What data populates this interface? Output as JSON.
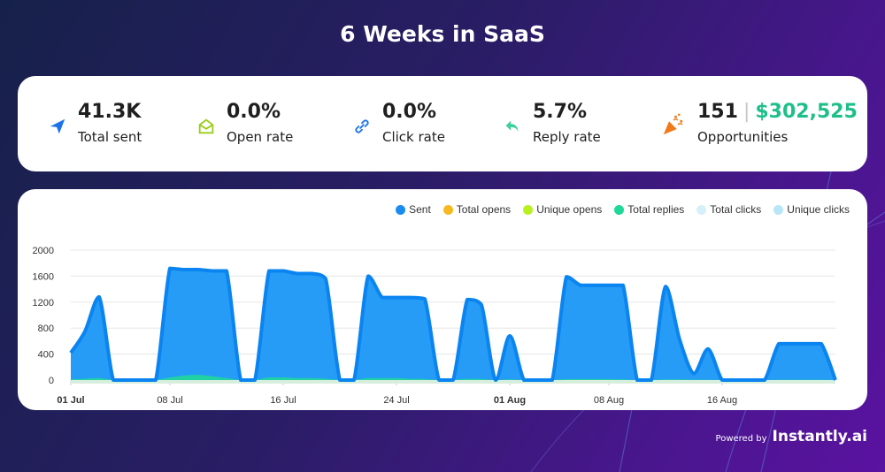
{
  "title": "6 Weeks in SaaS",
  "stats": [
    {
      "value": "41.3K",
      "label": "Total sent",
      "icon": "paper-plane-icon",
      "color": "#1a73e8"
    },
    {
      "value": "0.0%",
      "label": "Open rate",
      "icon": "open-envelope-icon",
      "color": "#9acd1a"
    },
    {
      "value": "0.0%",
      "label": "Click rate",
      "icon": "link-icon",
      "color": "#1a73e8"
    },
    {
      "value": "5.7%",
      "label": "Reply rate",
      "icon": "reply-arrow-icon",
      "color": "#3ecf9a"
    },
    {
      "value": "151",
      "money": "$302,525",
      "separator": "|",
      "label": "Opportunities",
      "icon": "party-popper-icon",
      "color": "#f07a1a"
    }
  ],
  "footer": {
    "powered_by": "Powered by",
    "brand": "Instantly.ai"
  },
  "chart_data": {
    "type": "area",
    "title": "",
    "xlabel": "",
    "ylabel": "",
    "ylim": [
      0,
      2000
    ],
    "yticks": [
      "0",
      "400",
      "800",
      "1200",
      "1600",
      "2000"
    ],
    "ytick_values": [
      0,
      400,
      800,
      1200,
      1600,
      2000
    ],
    "xticks": [
      {
        "label": "01 Jul",
        "day": 0,
        "bold": true
      },
      {
        "label": "08 Jul",
        "day": 7,
        "bold": false
      },
      {
        "label": "16 Jul",
        "day": 15,
        "bold": false
      },
      {
        "label": "24 Jul",
        "day": 23,
        "bold": false
      },
      {
        "label": "01 Aug",
        "day": 31,
        "bold": true
      },
      {
        "label": "08 Aug",
        "day": 38,
        "bold": false
      },
      {
        "label": "16 Aug",
        "day": 46,
        "bold": false
      }
    ],
    "grid": true,
    "legend_position": "top-right",
    "legend": [
      {
        "name": "Sent",
        "color": "#1a8cf0"
      },
      {
        "name": "Total opens",
        "color": "#f8b920"
      },
      {
        "name": "Unique opens",
        "color": "#b8f020"
      },
      {
        "name": "Total replies",
        "color": "#20d89a"
      },
      {
        "name": "Total clicks",
        "color": "#d6f0fa"
      },
      {
        "name": "Unique clicks",
        "color": "#b8e6f6"
      }
    ],
    "days": 54,
    "series": [
      {
        "name": "Sent",
        "values": [
          420,
          750,
          1280,
          0,
          0,
          0,
          0,
          1720,
          1700,
          1700,
          1680,
          1680,
          0,
          0,
          1680,
          1680,
          1640,
          1640,
          1560,
          0,
          0,
          1600,
          1270,
          1270,
          1270,
          1250,
          0,
          0,
          1240,
          1160,
          0,
          680,
          0,
          0,
          0,
          1590,
          1460,
          1460,
          1460,
          1460,
          0,
          0,
          1440,
          620,
          100,
          480,
          0,
          0,
          0,
          0,
          560,
          560,
          560,
          560,
          0
        ]
      },
      {
        "name": "Total replies",
        "values": [
          10,
          20,
          30,
          0,
          0,
          0,
          0,
          40,
          70,
          80,
          60,
          30,
          0,
          0,
          40,
          40,
          30,
          30,
          20,
          0,
          0,
          30,
          30,
          30,
          20,
          15,
          0,
          0,
          20,
          15,
          0,
          10,
          0,
          0,
          0,
          15,
          15,
          15,
          15,
          10,
          0,
          0,
          10,
          10,
          5,
          5,
          0,
          0,
          0,
          0,
          5,
          5,
          5,
          5,
          0
        ]
      },
      {
        "name": "Total opens",
        "values": []
      },
      {
        "name": "Unique opens",
        "values": []
      },
      {
        "name": "Total clicks",
        "values": []
      },
      {
        "name": "Unique clicks",
        "values": []
      }
    ]
  }
}
